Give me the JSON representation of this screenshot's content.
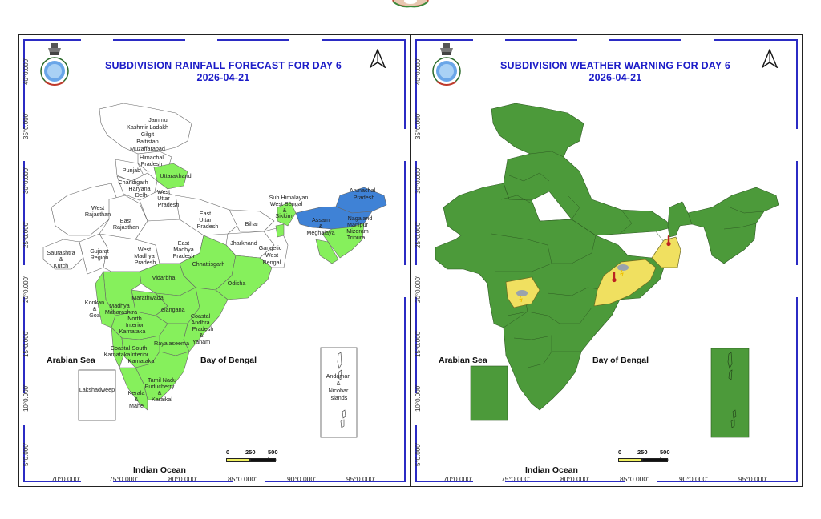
{
  "panels": [
    {
      "title": "SUBDIVISION RAINFALL FORECAST FOR DAY 6",
      "date": "2026-04-21",
      "seas": {
        "arabian": "Arabian Sea",
        "bengal": "Bay of Bengal",
        "indian": "Indian Ocean"
      },
      "lat_ticks": [
        "40°0.000'",
        "35°0.000'",
        "30°0.000'",
        "25°0.000'",
        "20°0.000'",
        "15°0.000'",
        "10°0.000'",
        "5°0.000'"
      ],
      "lon_ticks": [
        "70°0.000'",
        "75°0.000'",
        "80°0.000'",
        "85°0.000'",
        "90°0.000'",
        "95°0.000'"
      ],
      "scale": {
        "zero": "0",
        "mid": "250",
        "end": "500 km"
      },
      "insets": {
        "lakshadweep": "Lakshadweep",
        "andaman": "Andaman & Nicobar Islands"
      },
      "subdivisions": [
        {
          "name": "Jammu Kashmir Ladakh Gilgit Baltistan Muzaffarabad",
          "color": "white"
        },
        {
          "name": "Himachal Pradesh",
          "color": "white"
        },
        {
          "name": "Punjab",
          "color": "white"
        },
        {
          "name": "Uttarakhand",
          "color": "green"
        },
        {
          "name": "Chandigarh Haryana Delhi",
          "color": "white"
        },
        {
          "name": "West Uttar Pradesh",
          "color": "white"
        },
        {
          "name": "East Uttar Pradesh",
          "color": "white"
        },
        {
          "name": "West Rajasthan",
          "color": "white"
        },
        {
          "name": "East Rajasthan",
          "color": "white"
        },
        {
          "name": "West Madhya Pradesh",
          "color": "white"
        },
        {
          "name": "East Madhya Pradesh",
          "color": "white"
        },
        {
          "name": "Bihar",
          "color": "white"
        },
        {
          "name": "Jharkhand",
          "color": "white"
        },
        {
          "name": "Gangetic West Bengal",
          "color": "white"
        },
        {
          "name": "Sub Himalayan West Bengal & Sikkim",
          "color": "green"
        },
        {
          "name": "Arunachal Pradesh",
          "color": "blue"
        },
        {
          "name": "Assam & Meghalaya",
          "color": "blue"
        },
        {
          "name": "Nagaland Manipur Mizoram Tripura",
          "color": "green"
        },
        {
          "name": "Saurashtra & Kutch",
          "color": "white"
        },
        {
          "name": "Gujarat Region",
          "color": "white"
        },
        {
          "name": "Chhattisgarh",
          "color": "green"
        },
        {
          "name": "Odisha",
          "color": "green"
        },
        {
          "name": "Vidarbha",
          "color": "green"
        },
        {
          "name": "Marathwada",
          "color": "green"
        },
        {
          "name": "Madhya Maharashtra",
          "color": "green"
        },
        {
          "name": "Konkan & Goa",
          "color": "green"
        },
        {
          "name": "Telangana",
          "color": "green"
        },
        {
          "name": "North Interior Karnataka",
          "color": "green"
        },
        {
          "name": "Coastal Andhra Pradesh & Yanam",
          "color": "green"
        },
        {
          "name": "Rayalaseema",
          "color": "green"
        },
        {
          "name": "Coastal Karnataka",
          "color": "green"
        },
        {
          "name": "South Interior Karnataka",
          "color": "green"
        },
        {
          "name": "Tamil Nadu Puducherry & Karaikal",
          "color": "green"
        },
        {
          "name": "Kerala & Mahe",
          "color": "green"
        }
      ]
    },
    {
      "title": "SUBDIVISION WEATHER WARNING FOR DAY 6",
      "date": "2026-04-21",
      "seas": {
        "arabian": "Arabian Sea",
        "bengal": "Bay of Bengal",
        "indian": "Indian Ocean"
      },
      "lat_ticks": [
        "40°0.000'",
        "35°0.000'",
        "30°0.000'",
        "25°0.000'",
        "20°0.000'",
        "15°0.000'",
        "10°0.000'",
        "5°0.000'"
      ],
      "lon_ticks": [
        "70°0.000'",
        "75°0.000'",
        "80°0.000'",
        "85°0.000'",
        "90°0.000'",
        "95°0.000'"
      ],
      "scale": {
        "zero": "0",
        "mid": "250",
        "end": "500 km"
      },
      "warnings": [
        {
          "region": "Madhya Maharashtra",
          "level": "yellow",
          "hazard": "thunderstorm-icon"
        },
        {
          "region": "Odisha",
          "level": "yellow",
          "hazard": "thunderstorm-icon"
        },
        {
          "region": "Odisha",
          "level": "yellow",
          "hazard": "heat-wave-icon"
        },
        {
          "region": "Gangetic West Bengal",
          "level": "yellow",
          "hazard": "heat-wave-icon"
        }
      ]
    }
  ],
  "colors": {
    "title": "#1c1cc8",
    "frame": "#2b2bc4",
    "rain_green": "#86f05c",
    "rain_blue": "#3f82d6",
    "warn_green": "#4c9a3a",
    "warn_yellow": "#f0e060"
  }
}
